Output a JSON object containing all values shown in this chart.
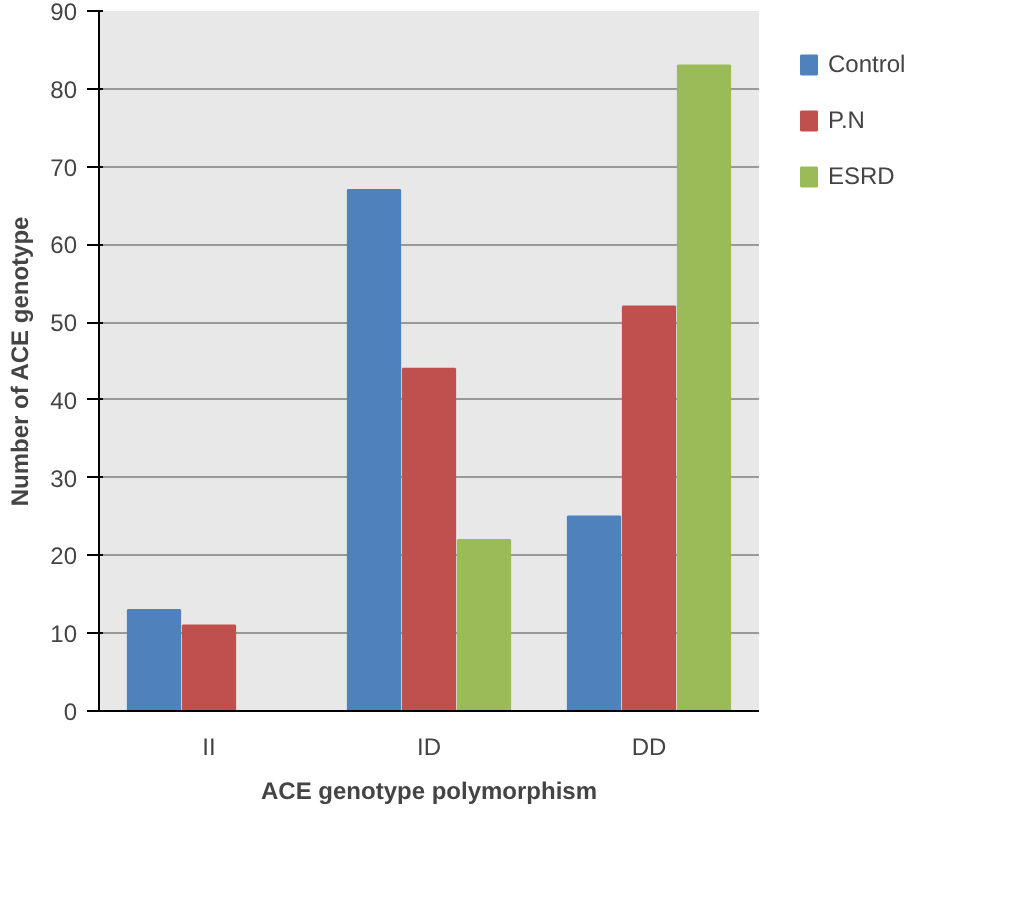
{
  "chart_data": {
    "type": "bar",
    "xlabel": "ACE genotype polymorphism",
    "ylabel": "Number of ACE genotype",
    "categories": [
      "II",
      "ID",
      "DD"
    ],
    "series": [
      {
        "name": "Control",
        "color": "#4f81bd",
        "values": [
          13,
          67,
          25
        ]
      },
      {
        "name": "P.N",
        "color": "#c0504d",
        "values": [
          11,
          44,
          52
        ]
      },
      {
        "name": "ESRD",
        "color": "#9bbb59",
        "values": [
          0,
          22,
          83
        ]
      }
    ],
    "ylim": [
      0,
      90
    ],
    "yticks": [
      0,
      10,
      20,
      30,
      40,
      50,
      60,
      70,
      80,
      90
    ],
    "grid": "y",
    "legend": "right"
  }
}
